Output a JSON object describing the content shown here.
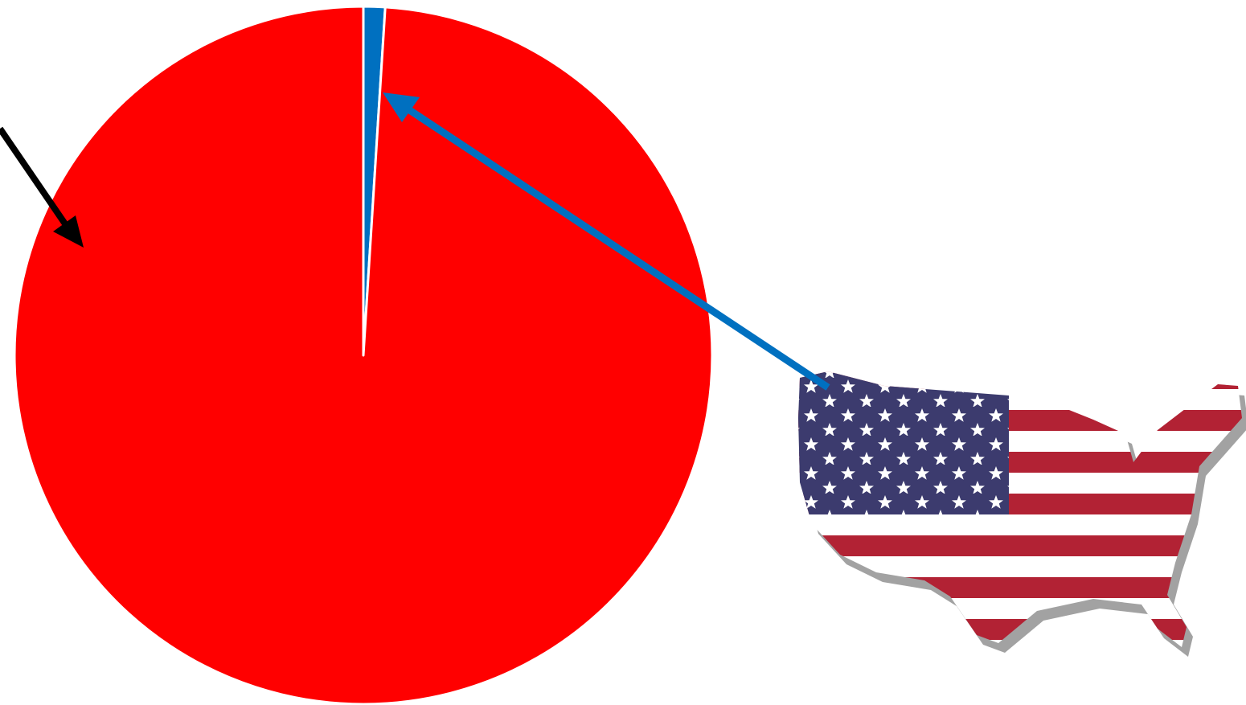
{
  "chart_data": {
    "type": "pie",
    "categories": [
      null,
      null
    ],
    "series": [
      {
        "values": [
          1,
          99
        ],
        "colors": [
          "#0070c0",
          "#ff0000"
        ]
      }
    ]
  }
}
